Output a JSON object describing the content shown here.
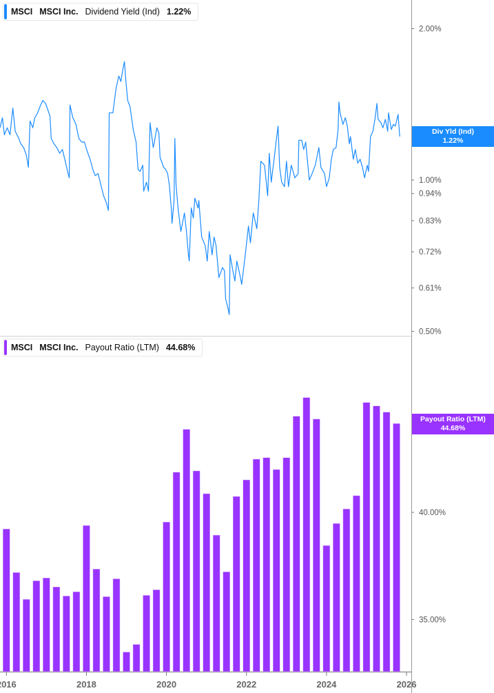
{
  "colors": {
    "dividend_yield": "#1a8cff",
    "payout_ratio": "#9933ff",
    "axis": "#999999",
    "tick_text": "#555555"
  },
  "legends": {
    "top": {
      "ticker": "MSCI",
      "company": "MSCI Inc.",
      "metric": "Dividend Yield (Ind)",
      "value": "1.22%"
    },
    "bottom": {
      "ticker": "MSCI",
      "company": "MSCI Inc.",
      "metric": "Payout Ratio (LTM)",
      "value": "44.68%"
    }
  },
  "tags": {
    "top": {
      "label": "Div Yld (Ind)",
      "value": "1.22%"
    },
    "bottom": {
      "label": "Payout Ratio (LTM)",
      "value": "44.68%"
    }
  },
  "chart_data": [
    {
      "type": "line",
      "series": [
        {
          "name": "Dividend Yield (Ind)",
          "unit": "%"
        }
      ],
      "y_scale": "log",
      "ylim": [
        0.49,
        2.28
      ],
      "xlim": [
        2015.84,
        2026.12
      ],
      "y_ticks": [
        {
          "value": 2.0,
          "label": "2.00%"
        },
        {
          "value": 1.0,
          "label": "1.00%"
        },
        {
          "value": 0.94,
          "label": "0.94%"
        },
        {
          "value": 0.83,
          "label": "0.83%"
        },
        {
          "value": 0.72,
          "label": "0.72%"
        },
        {
          "value": 0.61,
          "label": "0.61%"
        },
        {
          "value": 0.5,
          "label": "0.50%"
        }
      ],
      "y_axis_position": "right",
      "grid": false,
      "points": [
        [
          2015.84,
          1.27
        ],
        [
          2015.9,
          1.33
        ],
        [
          2015.95,
          1.23
        ],
        [
          2016.02,
          1.27
        ],
        [
          2016.09,
          1.23
        ],
        [
          2016.16,
          1.39
        ],
        [
          2016.22,
          1.25
        ],
        [
          2016.31,
          1.21
        ],
        [
          2016.36,
          1.18
        ],
        [
          2016.43,
          1.16
        ],
        [
          2016.5,
          1.12
        ],
        [
          2016.55,
          1.06
        ],
        [
          2016.59,
          1.31
        ],
        [
          2016.66,
          1.27
        ],
        [
          2016.71,
          1.33
        ],
        [
          2016.78,
          1.36
        ],
        [
          2016.84,
          1.4
        ],
        [
          2016.91,
          1.44
        ],
        [
          2016.98,
          1.42
        ],
        [
          2017.09,
          1.34
        ],
        [
          2017.12,
          1.21
        ],
        [
          2017.19,
          1.18
        ],
        [
          2017.26,
          1.16
        ],
        [
          2017.33,
          1.13
        ],
        [
          2017.4,
          1.15
        ],
        [
          2017.47,
          1.09
        ],
        [
          2017.53,
          1.04
        ],
        [
          2017.57,
          1.01
        ],
        [
          2017.59,
          1.41
        ],
        [
          2017.66,
          1.33
        ],
        [
          2017.74,
          1.29
        ],
        [
          2017.81,
          1.21
        ],
        [
          2017.88,
          1.19
        ],
        [
          2017.95,
          1.19
        ],
        [
          2018.02,
          1.14
        ],
        [
          2018.09,
          1.1
        ],
        [
          2018.16,
          1.05
        ],
        [
          2018.22,
          1.02
        ],
        [
          2018.29,
          1.03
        ],
        [
          2018.36,
          0.98
        ],
        [
          2018.43,
          0.93
        ],
        [
          2018.5,
          0.9
        ],
        [
          2018.55,
          0.87
        ],
        [
          2018.57,
          1.36
        ],
        [
          2018.66,
          1.36
        ],
        [
          2018.74,
          1.52
        ],
        [
          2018.81,
          1.61
        ],
        [
          2018.86,
          1.57
        ],
        [
          2018.91,
          1.66
        ],
        [
          2018.95,
          1.72
        ],
        [
          2018.98,
          1.59
        ],
        [
          2019.03,
          1.44
        ],
        [
          2019.09,
          1.4
        ],
        [
          2019.17,
          1.26
        ],
        [
          2019.24,
          1.19
        ],
        [
          2019.29,
          1.05
        ],
        [
          2019.34,
          1.04
        ],
        [
          2019.41,
          1.07
        ],
        [
          2019.43,
          0.95
        ],
        [
          2019.5,
          0.99
        ],
        [
          2019.55,
          0.95
        ],
        [
          2019.59,
          1.3
        ],
        [
          2019.67,
          1.16
        ],
        [
          2019.69,
          1.18
        ],
        [
          2019.76,
          1.27
        ],
        [
          2019.81,
          1.24
        ],
        [
          2019.84,
          1.11
        ],
        [
          2019.93,
          1.06
        ],
        [
          2019.98,
          1.05
        ],
        [
          2020.03,
          1.03
        ],
        [
          2020.07,
          0.98
        ],
        [
          2020.12,
          0.88
        ],
        [
          2020.14,
          0.82
        ],
        [
          2020.19,
          0.91
        ],
        [
          2020.21,
          1.21
        ],
        [
          2020.24,
          0.98
        ],
        [
          2020.29,
          0.88
        ],
        [
          2020.36,
          0.79
        ],
        [
          2020.45,
          0.86
        ],
        [
          2020.5,
          0.79
        ],
        [
          2020.55,
          0.71
        ],
        [
          2020.57,
          0.69
        ],
        [
          2020.62,
          0.88
        ],
        [
          2020.67,
          0.84
        ],
        [
          2020.71,
          0.92
        ],
        [
          2020.79,
          0.88
        ],
        [
          2020.81,
          0.91
        ],
        [
          2020.88,
          0.77
        ],
        [
          2020.97,
          0.74
        ],
        [
          2021.02,
          0.69
        ],
        [
          2021.07,
          0.79
        ],
        [
          2021.14,
          0.71
        ],
        [
          2021.19,
          0.77
        ],
        [
          2021.24,
          0.74
        ],
        [
          2021.31,
          0.64
        ],
        [
          2021.4,
          0.67
        ],
        [
          2021.45,
          0.66
        ],
        [
          2021.48,
          0.58
        ],
        [
          2021.53,
          0.56
        ],
        [
          2021.57,
          0.54
        ],
        [
          2021.59,
          0.71
        ],
        [
          2021.66,
          0.66
        ],
        [
          2021.71,
          0.63
        ],
        [
          2021.76,
          0.69
        ],
        [
          2021.83,
          0.65
        ],
        [
          2021.88,
          0.62
        ],
        [
          2021.97,
          0.71
        ],
        [
          2022.05,
          0.81
        ],
        [
          2022.1,
          0.75
        ],
        [
          2022.17,
          0.86
        ],
        [
          2022.26,
          0.8
        ],
        [
          2022.31,
          0.91
        ],
        [
          2022.36,
          1.09
        ],
        [
          2022.45,
          1.07
        ],
        [
          2022.53,
          0.93
        ],
        [
          2022.57,
          1.13
        ],
        [
          2022.62,
          0.99
        ],
        [
          2022.69,
          1.1
        ],
        [
          2022.74,
          1.19
        ],
        [
          2022.79,
          1.28
        ],
        [
          2022.83,
          1.06
        ],
        [
          2022.88,
          0.99
        ],
        [
          2022.95,
          0.97
        ],
        [
          2023.0,
          1.09
        ],
        [
          2023.05,
          0.97
        ],
        [
          2023.12,
          1.07
        ],
        [
          2023.21,
          1.01
        ],
        [
          2023.29,
          1.03
        ],
        [
          2023.31,
          1.2
        ],
        [
          2023.38,
          1.2
        ],
        [
          2023.43,
          1.15
        ],
        [
          2023.48,
          1.19
        ],
        [
          2023.57,
          1.0
        ],
        [
          2023.64,
          1.03
        ],
        [
          2023.72,
          1.07
        ],
        [
          2023.81,
          1.16
        ],
        [
          2023.86,
          1.06
        ],
        [
          2023.95,
          1.03
        ],
        [
          2024.0,
          0.97
        ],
        [
          2024.07,
          1.01
        ],
        [
          2024.12,
          1.1
        ],
        [
          2024.17,
          1.15
        ],
        [
          2024.24,
          1.16
        ],
        [
          2024.29,
          1.26
        ],
        [
          2024.31,
          1.43
        ],
        [
          2024.34,
          1.36
        ],
        [
          2024.41,
          1.29
        ],
        [
          2024.47,
          1.33
        ],
        [
          2024.52,
          1.28
        ],
        [
          2024.57,
          1.18
        ],
        [
          2024.6,
          1.22
        ],
        [
          2024.67,
          1.1
        ],
        [
          2024.72,
          1.15
        ],
        [
          2024.78,
          1.08
        ],
        [
          2024.84,
          1.1
        ],
        [
          2024.9,
          1.06
        ],
        [
          2024.95,
          1.01
        ],
        [
          2025.02,
          1.07
        ],
        [
          2025.05,
          1.04
        ],
        [
          2025.1,
          1.22
        ],
        [
          2025.16,
          1.25
        ],
        [
          2025.21,
          1.32
        ],
        [
          2025.26,
          1.42
        ],
        [
          2025.29,
          1.32
        ],
        [
          2025.36,
          1.3
        ],
        [
          2025.41,
          1.27
        ],
        [
          2025.47,
          1.32
        ],
        [
          2025.53,
          1.25
        ],
        [
          2025.55,
          1.36
        ],
        [
          2025.62,
          1.26
        ],
        [
          2025.67,
          1.29
        ],
        [
          2025.72,
          1.28
        ],
        [
          2025.79,
          1.35
        ],
        [
          2025.83,
          1.22
        ]
      ]
    },
    {
      "type": "bar",
      "series": [
        {
          "name": "Payout Ratio (LTM)",
          "unit": "%"
        }
      ],
      "y_scale": "log",
      "ylim": [
        32.8,
        49.8
      ],
      "xlim": [
        2015.84,
        2026.12
      ],
      "y_ticks": [
        {
          "value": 40,
          "label": "40.00%"
        },
        {
          "value": 35,
          "label": "35.00%"
        }
      ],
      "y_axis_position": "right",
      "x_ticks": [
        {
          "value": 2016,
          "label": "2016"
        },
        {
          "value": 2018,
          "label": "2018"
        },
        {
          "value": 2020,
          "label": "2020"
        },
        {
          "value": 2022,
          "label": "2022"
        },
        {
          "value": 2024,
          "label": "2024"
        },
        {
          "value": 2026,
          "label": "2026"
        }
      ],
      "grid": false,
      "x": [
        2016.0,
        2016.25,
        2016.5,
        2016.75,
        2017.0,
        2017.25,
        2017.5,
        2017.75,
        2018.0,
        2018.25,
        2018.5,
        2018.75,
        2019.0,
        2019.25,
        2019.5,
        2019.75,
        2020.0,
        2020.25,
        2020.5,
        2020.75,
        2021.0,
        2021.25,
        2021.5,
        2021.75,
        2022.0,
        2022.25,
        2022.5,
        2022.75,
        2023.0,
        2023.25,
        2023.5,
        2023.75,
        2024.0,
        2024.25,
        2024.5,
        2024.75,
        2025.0,
        2025.25,
        2025.5,
        2025.75
      ],
      "values": [
        39.18,
        37.11,
        35.89,
        36.73,
        36.86,
        36.45,
        36.04,
        36.23,
        39.35,
        37.27,
        36.01,
        36.82,
        33.61,
        33.93,
        36.07,
        36.32,
        39.52,
        42.05,
        44.36,
        42.12,
        40.94,
        38.88,
        37.14,
        40.8,
        41.65,
        42.74,
        42.82,
        42.19,
        42.82,
        45.09,
        46.15,
        44.93,
        38.38,
        39.45,
        40.17,
        40.84,
        45.87,
        45.67,
        45.32,
        44.68
      ]
    }
  ]
}
